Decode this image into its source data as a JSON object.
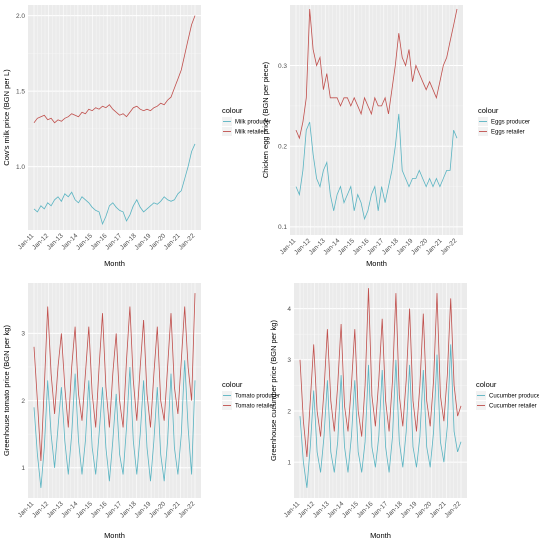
{
  "chart_data": [
    {
      "type": "line",
      "xlabel": "Month",
      "ylabel": "Cow's milk price (BGN per L)",
      "x_ticks": [
        "Jan-11",
        "Jan-12",
        "Jan-13",
        "Jan-14",
        "Jan-15",
        "Jan-16",
        "Jan-17",
        "Jan-18",
        "Jan-19",
        "Jan-20",
        "Jan-21",
        "Jan-22"
      ],
      "y_ticks": [
        1.0,
        1.5,
        2.0
      ],
      "ylim": [
        0.58,
        2.07
      ],
      "legend_title": "colour",
      "colors": [
        "#5ab4c2",
        "#c0504d"
      ],
      "series": [
        {
          "name": "Milk producer",
          "values": [
            0.72,
            0.7,
            0.74,
            0.72,
            0.76,
            0.74,
            0.78,
            0.8,
            0.77,
            0.82,
            0.8,
            0.83,
            0.78,
            0.76,
            0.8,
            0.78,
            0.76,
            0.73,
            0.71,
            0.7,
            0.62,
            0.67,
            0.74,
            0.76,
            0.73,
            0.71,
            0.7,
            0.64,
            0.68,
            0.74,
            0.78,
            0.73,
            0.7,
            0.72,
            0.74,
            0.76,
            0.75,
            0.77,
            0.8,
            0.78,
            0.77,
            0.78,
            0.82,
            0.84,
            0.92,
            1.0,
            1.1,
            1.15
          ]
        },
        {
          "name": "Milk retailer",
          "values": [
            1.29,
            1.32,
            1.33,
            1.34,
            1.31,
            1.32,
            1.29,
            1.31,
            1.3,
            1.32,
            1.33,
            1.35,
            1.34,
            1.33,
            1.36,
            1.35,
            1.38,
            1.37,
            1.39,
            1.38,
            1.4,
            1.39,
            1.41,
            1.38,
            1.36,
            1.34,
            1.35,
            1.33,
            1.36,
            1.39,
            1.4,
            1.38,
            1.37,
            1.38,
            1.37,
            1.39,
            1.4,
            1.42,
            1.41,
            1.44,
            1.46,
            1.52,
            1.58,
            1.64,
            1.74,
            1.84,
            1.94,
            2.0
          ]
        }
      ]
    },
    {
      "type": "line",
      "xlabel": "Month",
      "ylabel": "Chicken egg price (BGN per piece)",
      "x_ticks": [
        "Jan-11",
        "Jan-12",
        "Jan-13",
        "Jan-14",
        "Jan-15",
        "Jan-16",
        "Jan-17",
        "Jan-18",
        "Jan-19",
        "Jan-20",
        "Jan-21",
        "Jan-22"
      ],
      "y_ticks": [
        0.1,
        0.2,
        0.3
      ],
      "ylim": [
        0.09,
        0.375
      ],
      "legend_title": "colour",
      "colors": [
        "#5ab4c2",
        "#c0504d"
      ],
      "series": [
        {
          "name": "Eggs producer",
          "values": [
            0.15,
            0.14,
            0.17,
            0.22,
            0.23,
            0.19,
            0.16,
            0.15,
            0.17,
            0.18,
            0.14,
            0.12,
            0.14,
            0.15,
            0.13,
            0.14,
            0.15,
            0.12,
            0.14,
            0.13,
            0.11,
            0.12,
            0.14,
            0.15,
            0.12,
            0.15,
            0.13,
            0.15,
            0.17,
            0.2,
            0.24,
            0.17,
            0.16,
            0.15,
            0.16,
            0.16,
            0.17,
            0.16,
            0.15,
            0.16,
            0.15,
            0.16,
            0.15,
            0.16,
            0.17,
            0.17,
            0.22,
            0.21
          ]
        },
        {
          "name": "Eggs retailer",
          "values": [
            0.22,
            0.21,
            0.23,
            0.26,
            0.37,
            0.32,
            0.3,
            0.31,
            0.27,
            0.29,
            0.26,
            0.26,
            0.26,
            0.25,
            0.26,
            0.26,
            0.25,
            0.26,
            0.25,
            0.24,
            0.26,
            0.25,
            0.24,
            0.26,
            0.25,
            0.25,
            0.26,
            0.24,
            0.27,
            0.3,
            0.34,
            0.31,
            0.3,
            0.32,
            0.28,
            0.3,
            0.29,
            0.28,
            0.27,
            0.28,
            0.27,
            0.26,
            0.28,
            0.3,
            0.31,
            0.33,
            0.35,
            0.37
          ]
        }
      ]
    },
    {
      "type": "line",
      "xlabel": "Month",
      "ylabel": "Greenhouse tomato price (BGN per kg)",
      "x_ticks": [
        "Jan-11",
        "Jan-12",
        "Jan-13",
        "Jan-14",
        "Jan-15",
        "Jan-16",
        "Jan-17",
        "Jan-18",
        "Jan-19",
        "Jan-20",
        "Jan-21",
        "Jan-22"
      ],
      "y_ticks": [
        1,
        2,
        3
      ],
      "ylim": [
        0.55,
        3.75
      ],
      "legend_title": "colour",
      "colors": [
        "#5ab4c2",
        "#c0504d"
      ],
      "series": [
        {
          "name": "Tomato producer",
          "values": [
            1.9,
            1.2,
            0.7,
            1.3,
            2.3,
            1.5,
            1.0,
            1.6,
            2.2,
            1.4,
            0.9,
            1.5,
            2.4,
            1.4,
            0.9,
            1.4,
            2.3,
            1.3,
            0.9,
            1.5,
            2.2,
            1.3,
            0.8,
            1.4,
            2.1,
            1.2,
            0.9,
            1.6,
            2.5,
            1.4,
            0.9,
            1.5,
            2.3,
            1.3,
            0.8,
            1.4,
            2.2,
            1.2,
            0.8,
            1.4,
            2.4,
            1.3,
            0.9,
            1.5,
            2.6,
            1.6,
            0.9,
            2.3
          ]
        },
        {
          "name": "Tomato retailer",
          "values": [
            2.8,
            2.0,
            1.1,
            2.2,
            3.4,
            2.4,
            1.8,
            2.5,
            3.0,
            2.2,
            1.6,
            2.5,
            3.1,
            2.1,
            1.7,
            2.4,
            3.1,
            2.1,
            1.6,
            2.5,
            3.3,
            2.2,
            1.6,
            2.4,
            3.0,
            2.0,
            1.6,
            2.6,
            3.4,
            2.3,
            1.7,
            2.5,
            3.2,
            2.1,
            1.6,
            2.4,
            3.1,
            2.0,
            1.7,
            2.5,
            3.3,
            2.2,
            1.8,
            2.6,
            3.4,
            2.5,
            2.0,
            3.6
          ]
        }
      ]
    },
    {
      "type": "line",
      "xlabel": "Month",
      "ylabel": "Greenhouse cucumber price (BGN per kg)",
      "x_ticks": [
        "Jan-11",
        "Jan-12",
        "Jan-13",
        "Jan-14",
        "Jan-15",
        "Jan-16",
        "Jan-17",
        "Jan-18",
        "Jan-19",
        "Jan-20",
        "Jan-21",
        "Jan-22"
      ],
      "y_ticks": [
        1,
        2,
        3,
        4
      ],
      "ylim": [
        0.3,
        4.5
      ],
      "legend_title": "colour",
      "colors": [
        "#5ab4c2",
        "#c0504d"
      ],
      "series": [
        {
          "name": "Cucumber producer",
          "values": [
            1.9,
            1.0,
            0.5,
            1.3,
            2.4,
            1.2,
            0.8,
            1.5,
            2.6,
            1.2,
            0.8,
            1.4,
            2.7,
            1.3,
            0.8,
            1.5,
            2.6,
            1.2,
            0.8,
            1.4,
            2.9,
            1.3,
            0.9,
            1.5,
            2.8,
            1.3,
            0.8,
            1.5,
            3.0,
            1.4,
            0.9,
            1.6,
            2.9,
            1.3,
            0.9,
            1.5,
            2.8,
            1.3,
            0.9,
            1.6,
            3.1,
            1.4,
            1.0,
            1.7,
            3.3,
            1.6,
            1.2,
            1.4
          ]
        },
        {
          "name": "Cucumber retailer",
          "values": [
            3.0,
            1.8,
            1.1,
            2.2,
            3.3,
            2.0,
            1.5,
            2.4,
            3.6,
            2.2,
            1.6,
            2.5,
            3.7,
            2.1,
            1.6,
            2.5,
            3.6,
            2.0,
            1.5,
            2.5,
            4.4,
            2.3,
            1.7,
            2.6,
            3.8,
            2.2,
            1.6,
            2.6,
            4.3,
            2.3,
            1.7,
            2.6,
            4.0,
            2.2,
            1.6,
            2.5,
            3.9,
            2.2,
            1.7,
            2.6,
            4.3,
            2.3,
            1.8,
            2.7,
            4.2,
            2.5,
            1.9,
            2.1
          ]
        }
      ]
    }
  ]
}
